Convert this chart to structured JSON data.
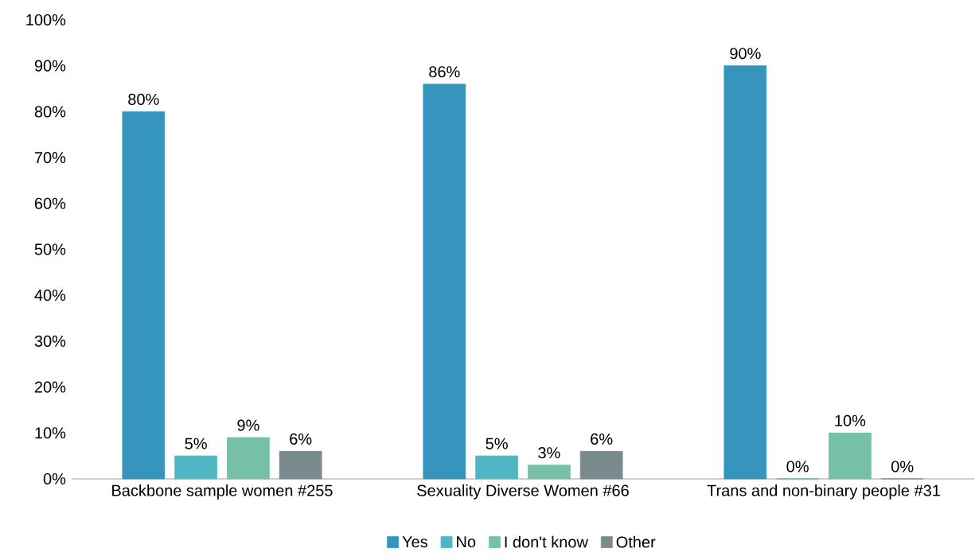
{
  "chart_data": {
    "type": "bar",
    "categories": [
      "Backbone sample women #255",
      "Sexuality Diverse Women #66",
      "Trans and non-binary people #31"
    ],
    "series": [
      {
        "name": "Yes",
        "color": "#3595bd",
        "values": [
          80,
          86,
          90
        ],
        "value_labels": [
          "80%",
          "86%",
          "90%"
        ]
      },
      {
        "name": "No",
        "color": "#4fb7c4",
        "values": [
          5,
          5,
          0
        ],
        "value_labels": [
          "5%",
          "5%",
          "0%"
        ]
      },
      {
        "name": "I don't know",
        "color": "#75c0a6",
        "values": [
          9,
          3,
          10
        ],
        "value_labels": [
          "9%",
          "3%",
          "10%"
        ]
      },
      {
        "name": "Other",
        "color": "#7a8b8d",
        "values": [
          6,
          6,
          0
        ],
        "value_labels": [
          "6%",
          "6%",
          "0%"
        ]
      }
    ],
    "ylim": [
      0,
      100
    ],
    "yticks": [
      {
        "value": 0,
        "label": "0%"
      },
      {
        "value": 10,
        "label": "10%"
      },
      {
        "value": 20,
        "label": "20%"
      },
      {
        "value": 30,
        "label": "30%"
      },
      {
        "value": 40,
        "label": "40%"
      },
      {
        "value": 50,
        "label": "50%"
      },
      {
        "value": 60,
        "label": "60%"
      },
      {
        "value": 70,
        "label": "70%"
      },
      {
        "value": 80,
        "label": "80%"
      },
      {
        "value": 90,
        "label": "90%"
      },
      {
        "value": 100,
        "label": "100%"
      }
    ],
    "grid": false,
    "legend": "bottom"
  }
}
